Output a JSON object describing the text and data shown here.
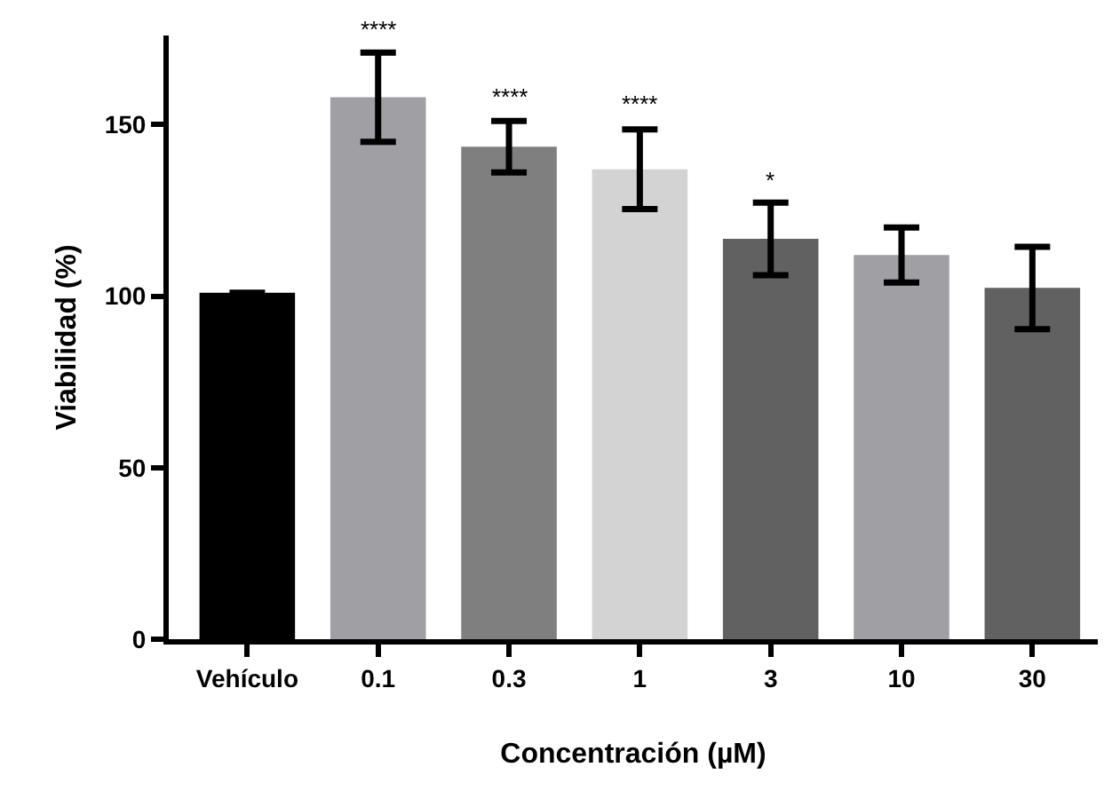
{
  "chart_data": {
    "type": "bar",
    "xlabel": "Concentración (µM)",
    "ylabel": "Viabilidad (%)",
    "categories": [
      "Vehículo",
      "0.1",
      "0.3",
      "1",
      "3",
      "10",
      "30"
    ],
    "values": [
      101,
      158,
      143.6,
      137,
      116.7,
      112,
      102.4
    ],
    "colors": [
      "#000000",
      "#a09fa4",
      "#7f7f7f",
      "#d3d3d3",
      "#616161",
      "#a09fa4",
      "#616161"
    ],
    "errors": [
      null,
      13,
      7.5,
      11.6,
      10.6,
      8,
      12
    ],
    "ylim": [
      0,
      176
    ],
    "yticks": [
      0,
      50,
      100,
      150
    ],
    "annotations": [
      {
        "text": "****",
        "x": "0.1",
        "y": 173
      },
      {
        "text": "****",
        "x": "0.3",
        "y": 153
      },
      {
        "text": "****",
        "x": "1",
        "y": 151
      },
      {
        "text": "*",
        "x": "3",
        "y": 129
      }
    ]
  }
}
